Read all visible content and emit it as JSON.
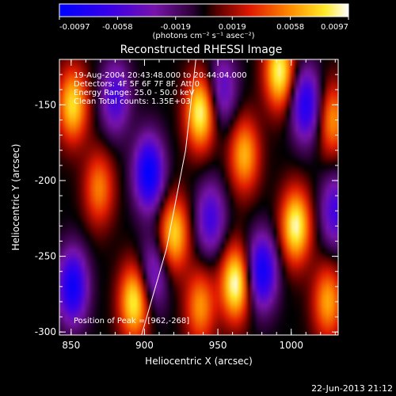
{
  "colorbar": {
    "min": -0.0097,
    "max": 0.0097,
    "tick_labels": [
      "-0.0097",
      "-0.0058",
      "-0.0019",
      "0.0019",
      "0.0058",
      "0.0097"
    ],
    "tick_values": [
      -0.0097,
      -0.0058,
      -0.0019,
      0.0019,
      0.0058,
      0.0097
    ],
    "units": "(photons cm⁻² s⁻¹ asec⁻²)"
  },
  "chart_data": {
    "type": "heatmap",
    "title": "Reconstructed RHESSI Image",
    "xlabel": "Heliocentric X (arcsec)",
    "ylabel": "Heliocentric Y (arcsec)",
    "xlim": [
      842,
      1032
    ],
    "ylim": [
      -302,
      -120
    ],
    "x_ticks": [
      850,
      900,
      950,
      1000
    ],
    "x_tick_labels": [
      "850",
      "900",
      "950",
      "1000"
    ],
    "y_ticks": [
      -300,
      -250,
      -200,
      -150
    ],
    "y_tick_labels": [
      "-300",
      "-250",
      "-200",
      "-150"
    ],
    "colormap": "blue-purple-black-red-yellow-white (RHESSI)",
    "value_range": [
      -0.0097,
      0.0097
    ],
    "grid": false,
    "peaks": [
      {
        "x": 851,
        "y": -150,
        "v": 0.008
      },
      {
        "x": 869,
        "y": -205,
        "v": 0.0055
      },
      {
        "x": 893,
        "y": -280,
        "v": 0.0088
      },
      {
        "x": 920,
        "y": -235,
        "v": 0.0078
      },
      {
        "x": 938,
        "y": -155,
        "v": 0.0092
      },
      {
        "x": 938,
        "y": -283,
        "v": 0.006
      },
      {
        "x": 962,
        "y": -268,
        "v": 0.0097
      },
      {
        "x": 968,
        "y": -183,
        "v": 0.0068
      },
      {
        "x": 992,
        "y": -128,
        "v": 0.009
      },
      {
        "x": 1003,
        "y": -230,
        "v": 0.0093
      },
      {
        "x": 1028,
        "y": -160,
        "v": 0.006
      },
      {
        "x": 1025,
        "y": -280,
        "v": 0.0065
      }
    ],
    "troughs": [
      {
        "x": 851,
        "y": -270,
        "v": -0.009
      },
      {
        "x": 880,
        "y": -145,
        "v": -0.006
      },
      {
        "x": 903,
        "y": -195,
        "v": -0.0097
      },
      {
        "x": 906,
        "y": -262,
        "v": -0.005
      },
      {
        "x": 945,
        "y": -225,
        "v": -0.006
      },
      {
        "x": 953,
        "y": -140,
        "v": -0.005
      },
      {
        "x": 980,
        "y": -260,
        "v": -0.009
      },
      {
        "x": 1010,
        "y": -150,
        "v": -0.008
      },
      {
        "x": 1030,
        "y": -220,
        "v": -0.006
      }
    ],
    "limb_curve": [
      {
        "x": 935,
        "y": -120
      },
      {
        "x": 928,
        "y": -180
      },
      {
        "x": 915,
        "y": -245
      },
      {
        "x": 898,
        "y": -302
      }
    ],
    "annotations": {
      "time": "19-Aug-2004 20:43:48.000 to 20:44:04.000",
      "detectors": "Detectors: 4F 5F 6F 7F 8F, Att 0",
      "energy": "Energy Range: 25.0 - 50.0 keV",
      "method": "Clean    Total counts: 1.35E+03",
      "peak": "Position of Peak = [962,-268]"
    }
  },
  "footer": {
    "date": "22-Jun-2013 21:12"
  }
}
